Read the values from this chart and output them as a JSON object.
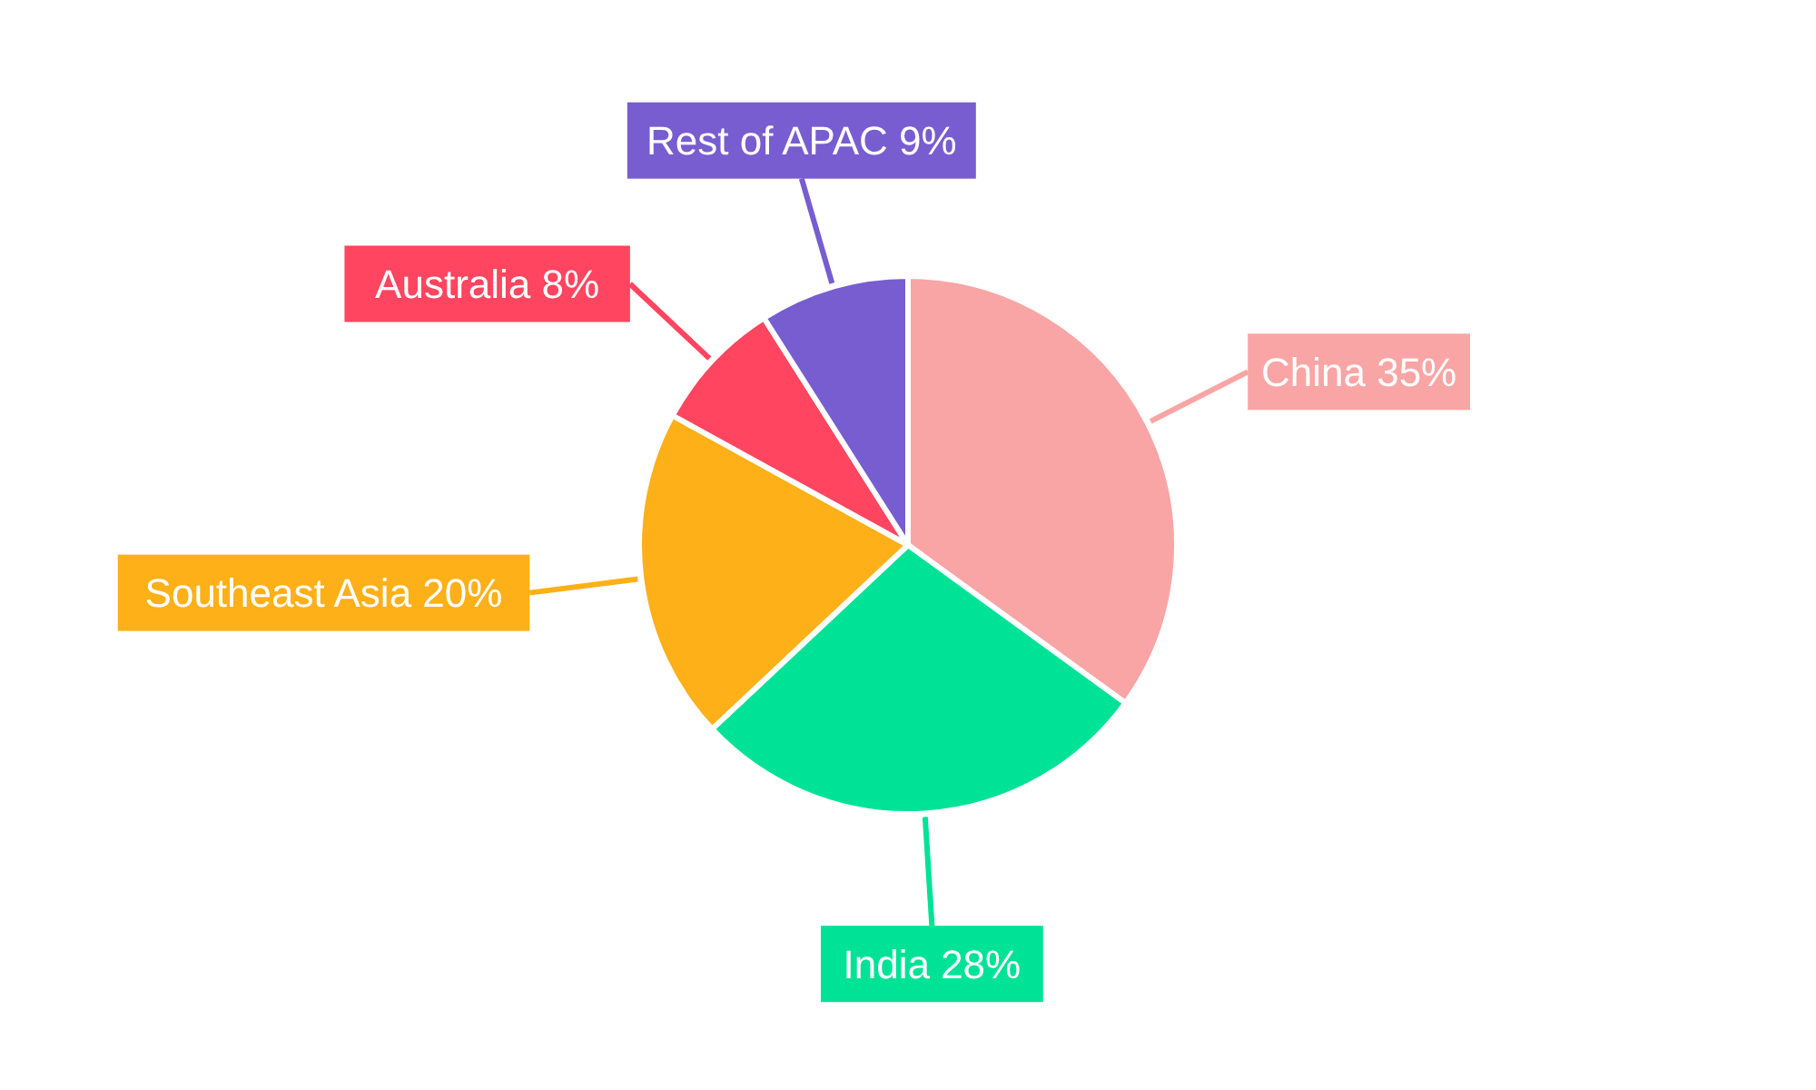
{
  "chart_data": {
    "type": "pie",
    "categories": [
      "China",
      "India",
      "Southeast Asia",
      "Australia",
      "Rest of APAC"
    ],
    "values": [
      35,
      28,
      20,
      8,
      9
    ],
    "colors": [
      "#f9a5a5",
      "#00e396",
      "#feb019",
      "#ff4560",
      "#775dd0"
    ],
    "value_labels": [
      "35%",
      "28%",
      "20%",
      "8%",
      "9%"
    ]
  }
}
